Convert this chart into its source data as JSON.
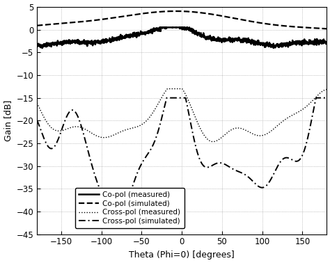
{
  "title": "",
  "xlabel": "Theta (Phi=0) [degrees]",
  "ylabel": "Gain [dB]",
  "xlim": [
    -180,
    180
  ],
  "ylim": [
    -45,
    5
  ],
  "yticks": [
    5,
    0,
    -5,
    -10,
    -15,
    -20,
    -25,
    -30,
    -35,
    -40,
    -45
  ],
  "xticks": [
    -150,
    -100,
    -50,
    0,
    50,
    100,
    150
  ],
  "legend_labels": [
    "Co-pol (measured)",
    "Co-pol (simulated)",
    "Cross-pol (measured)",
    "Cross-pol (simulated)"
  ],
  "line_color": "#000000",
  "background_color": "#ffffff"
}
